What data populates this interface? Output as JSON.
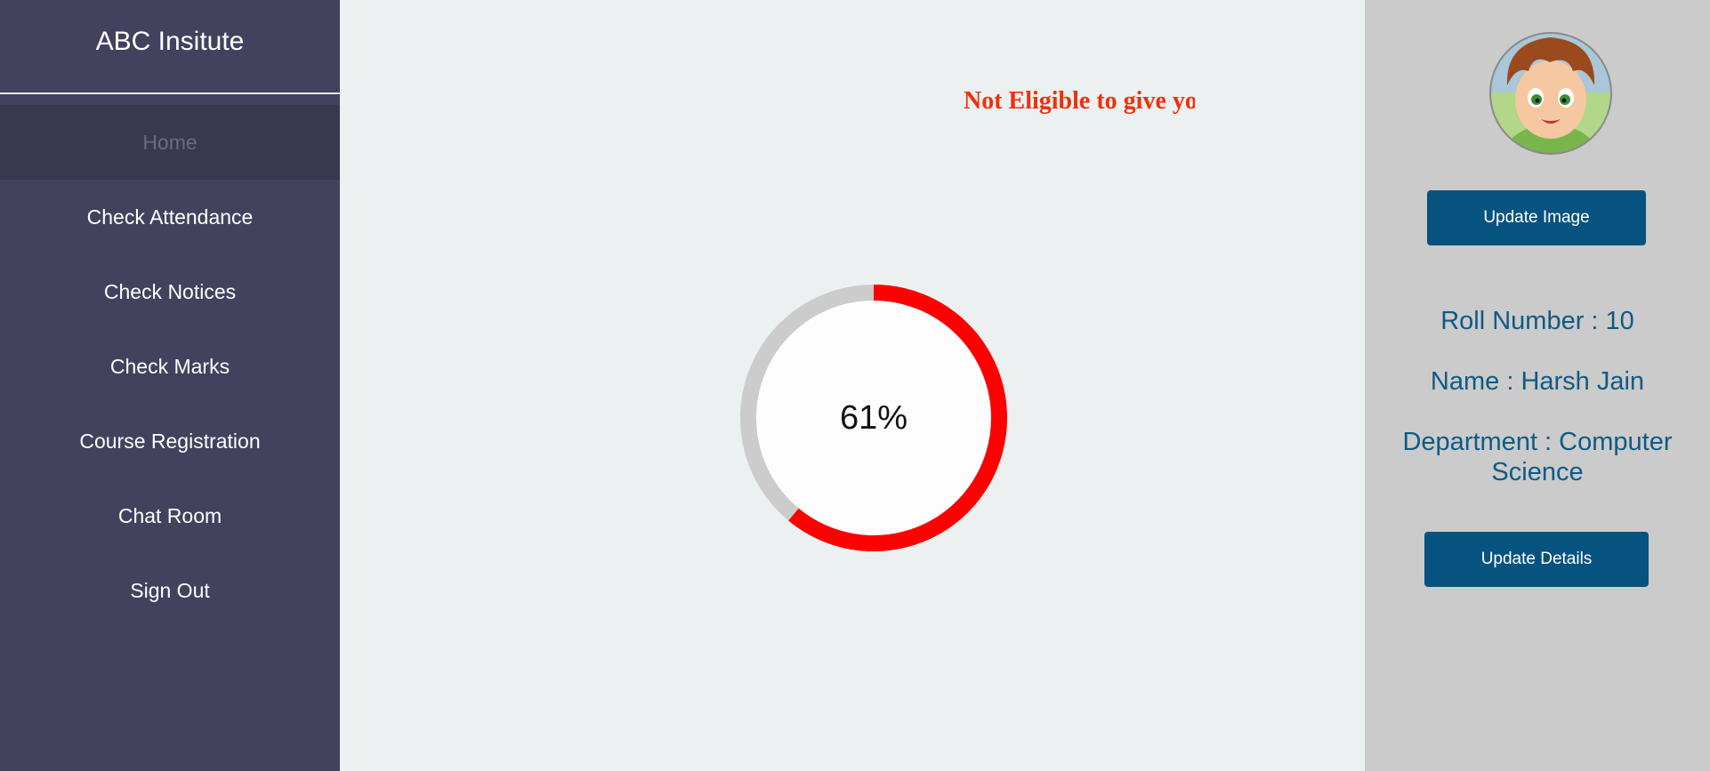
{
  "sidebar": {
    "brand": "ABC Insitute",
    "items": [
      {
        "label": "Home"
      },
      {
        "label": "Check Attendance"
      },
      {
        "label": "Check Notices"
      },
      {
        "label": "Check Marks"
      },
      {
        "label": "Course Registration"
      },
      {
        "label": "Chat Room"
      },
      {
        "label": "Sign Out"
      }
    ]
  },
  "main": {
    "alert": "Not Eligible to give your exam",
    "attendance": {
      "percent": 61,
      "label": "61%"
    }
  },
  "profile": {
    "avatar_icon": "cartoon-boy-avatar",
    "update_image_label": "Update Image",
    "roll": "Roll Number : 10",
    "name": "Name : Harsh Jain",
    "department": "Department : Computer Science",
    "update_details_label": "Update Details"
  },
  "colors": {
    "sidebar_bg": "#42425e",
    "sidebar_active_bg": "#39384e",
    "main_bg": "#ecf0f1",
    "profile_bg": "#cbcbcb",
    "button_bg": "#075380",
    "info_text": "#0f5a86",
    "progress_fill": "#ff0000",
    "progress_track": "#cccccc",
    "alert_text": "#f0300a"
  }
}
